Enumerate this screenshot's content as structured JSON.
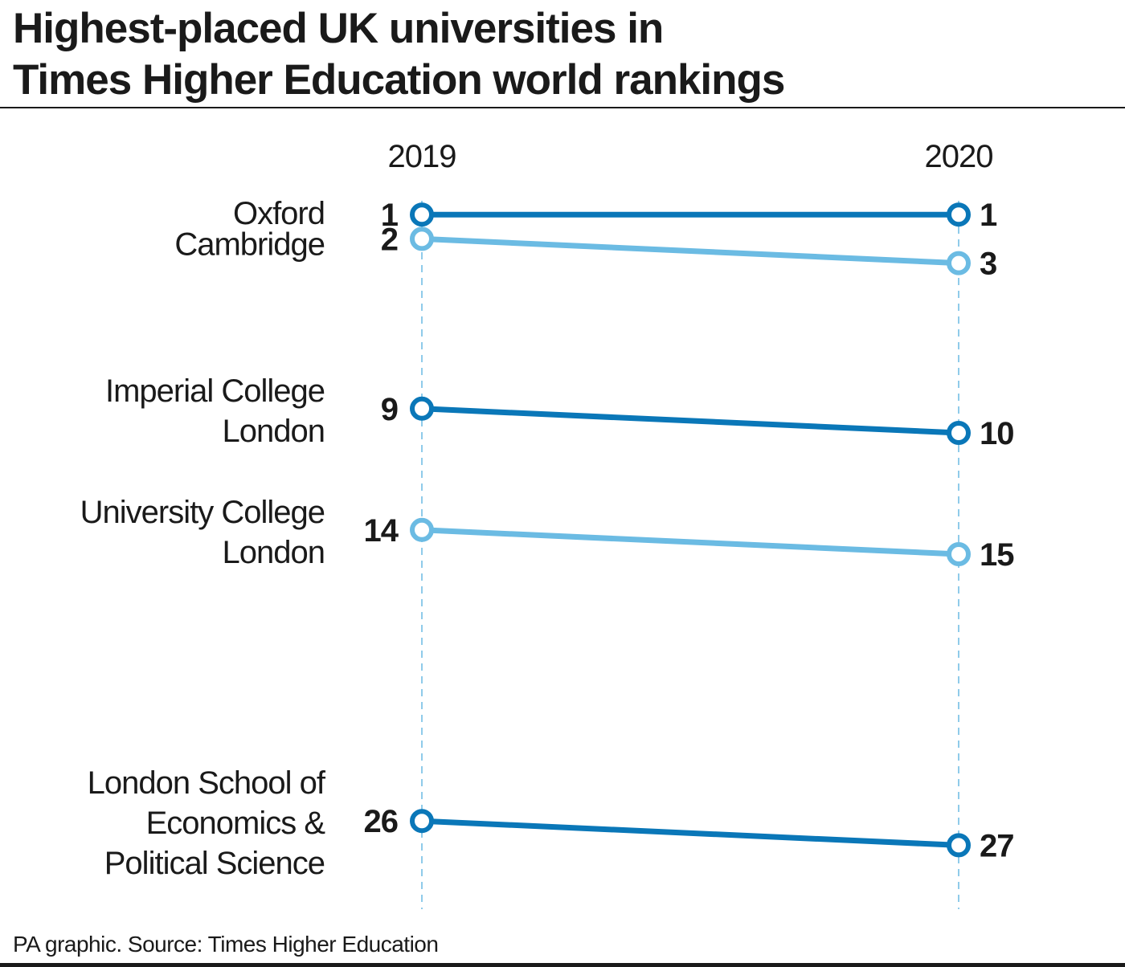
{
  "chart_data": {
    "type": "line",
    "title_lines": [
      "Highest-placed UK universities in",
      "Times Higher Education world rankings"
    ],
    "x": [
      "2019",
      "2020"
    ],
    "y_axis": "rank (1 at top)",
    "ylim": [
      0,
      28
    ],
    "series": [
      {
        "label_lines": [
          "Oxford"
        ],
        "values": [
          1,
          1
        ],
        "color": "#0a77b8"
      },
      {
        "label_lines": [
          "Cambridge"
        ],
        "values": [
          2,
          3
        ],
        "color": "#6bbbe3"
      },
      {
        "label_lines": [
          "Imperial College",
          "London"
        ],
        "values": [
          9,
          10
        ],
        "color": "#0a77b8"
      },
      {
        "label_lines": [
          "University College",
          "London"
        ],
        "values": [
          14,
          15
        ],
        "color": "#6bbbe3"
      },
      {
        "label_lines": [
          "London School of",
          "Economics &",
          "Political Science"
        ],
        "values": [
          26,
          27
        ],
        "color": "#0a77b8"
      }
    ],
    "gridlines": "vertical dashed at each year",
    "legend": "none"
  },
  "source": "PA graphic. Source: Times Higher Education"
}
